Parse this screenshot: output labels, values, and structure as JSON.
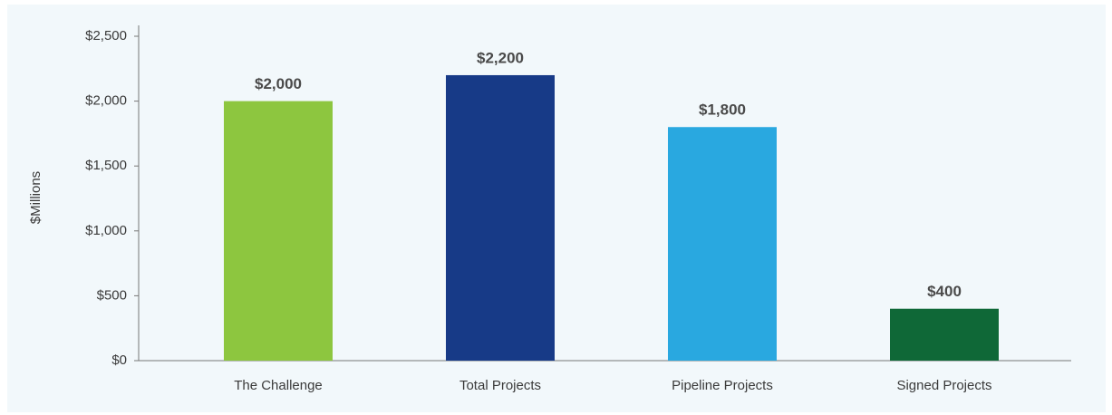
{
  "chart_data": {
    "type": "bar",
    "y_label": "$Millions",
    "categories": [
      "The Challenge",
      "Total Projects",
      "Pipeline Projects",
      "Signed Projects"
    ],
    "values": [
      2000,
      2200,
      1800,
      400
    ],
    "value_labels": [
      "$2,000",
      "$2,200",
      "$1,800",
      "$400"
    ],
    "colors": [
      "#8dc63f",
      "#173a87",
      "#29a8e0",
      "#0f6837"
    ],
    "ylim": [
      0,
      2500
    ],
    "yticks": [
      {
        "value": 0,
        "label": "$0"
      },
      {
        "value": 500,
        "label": "$500"
      },
      {
        "value": 1000,
        "label": "$1,000"
      },
      {
        "value": 1500,
        "label": "$1,500"
      },
      {
        "value": 2000,
        "label": "$2,000"
      },
      {
        "value": 2500,
        "label": "$2,500"
      }
    ],
    "grid": false
  }
}
